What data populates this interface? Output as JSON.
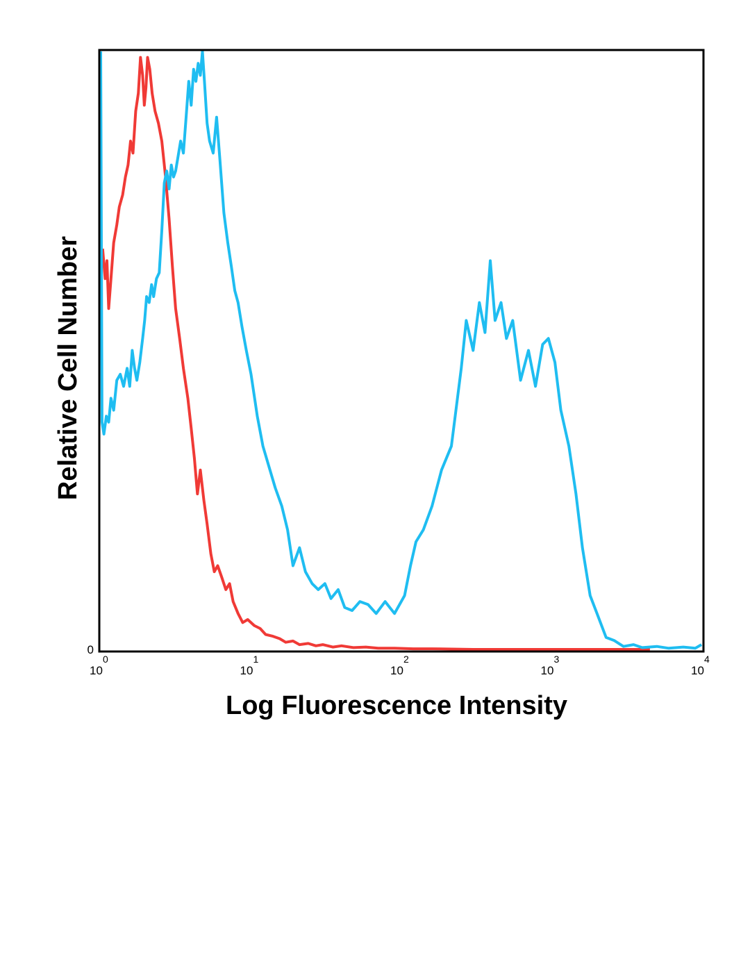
{
  "chart_data": {
    "type": "line",
    "title": "",
    "xlabel": "Log Fluorescence Intensity",
    "ylabel": "Relative Cell Number",
    "xscale": "log",
    "xlim": [
      1,
      10000
    ],
    "ylim": [
      0,
      100
    ],
    "x_ticks": [
      {
        "base": "10",
        "exp": "0",
        "value": 1
      },
      {
        "base": "10",
        "exp": "1",
        "value": 10
      },
      {
        "base": "10",
        "exp": "2",
        "value": 100
      },
      {
        "base": "10",
        "exp": "3",
        "value": 1000
      },
      {
        "base": "10",
        "exp": "4",
        "value": 10000
      }
    ],
    "y_ticks": [
      {
        "label": "0",
        "value": 0
      }
    ],
    "grid": false,
    "legend": "none",
    "series": [
      {
        "name": "red",
        "color": "#f03a36",
        "points": [
          [
            1.03,
            67
          ],
          [
            1.07,
            62
          ],
          [
            1.1,
            65
          ],
          [
            1.13,
            57
          ],
          [
            1.17,
            62
          ],
          [
            1.22,
            68
          ],
          [
            1.28,
            71
          ],
          [
            1.33,
            74
          ],
          [
            1.4,
            76
          ],
          [
            1.46,
            79
          ],
          [
            1.52,
            81
          ],
          [
            1.58,
            85
          ],
          [
            1.64,
            83
          ],
          [
            1.71,
            90
          ],
          [
            1.78,
            93
          ],
          [
            1.84,
            99
          ],
          [
            1.9,
            96
          ],
          [
            1.95,
            91
          ],
          [
            2.0,
            94
          ],
          [
            2.05,
            99
          ],
          [
            2.12,
            97
          ],
          [
            2.2,
            93
          ],
          [
            2.3,
            90
          ],
          [
            2.42,
            88
          ],
          [
            2.55,
            85
          ],
          [
            2.7,
            79
          ],
          [
            2.85,
            72
          ],
          [
            3.0,
            64
          ],
          [
            3.15,
            57
          ],
          [
            3.35,
            52
          ],
          [
            3.55,
            47
          ],
          [
            3.8,
            42
          ],
          [
            4.0,
            37
          ],
          [
            4.2,
            32
          ],
          [
            4.4,
            26
          ],
          [
            4.6,
            30
          ],
          [
            4.85,
            25
          ],
          [
            5.1,
            21
          ],
          [
            5.4,
            16
          ],
          [
            5.7,
            13
          ],
          [
            6.0,
            14
          ],
          [
            6.4,
            12
          ],
          [
            6.8,
            10
          ],
          [
            7.2,
            11
          ],
          [
            7.6,
            8
          ],
          [
            8.2,
            6
          ],
          [
            8.8,
            4.5
          ],
          [
            9.5,
            5
          ],
          [
            10.5,
            4
          ],
          [
            11.5,
            3.5
          ],
          [
            12.5,
            2.5
          ],
          [
            14,
            2.2
          ],
          [
            15.5,
            1.8
          ],
          [
            17,
            1.2
          ],
          [
            19,
            1.4
          ],
          [
            21,
            0.8
          ],
          [
            24,
            1
          ],
          [
            27,
            0.6
          ],
          [
            30,
            0.8
          ],
          [
            35,
            0.4
          ],
          [
            40,
            0.6
          ],
          [
            48,
            0.3
          ],
          [
            58,
            0.4
          ],
          [
            70,
            0.2
          ],
          [
            90,
            0.2
          ],
          [
            120,
            0.1
          ],
          [
            160,
            0.1
          ],
          [
            300,
            0
          ],
          [
            1000,
            0
          ],
          [
            3000,
            0
          ],
          [
            4500,
            0
          ]
        ]
      },
      {
        "name": "blue",
        "color": "#1fbdf1",
        "points": [
          [
            1.0,
            100
          ],
          [
            1.02,
            38
          ],
          [
            1.05,
            36
          ],
          [
            1.09,
            39
          ],
          [
            1.13,
            38
          ],
          [
            1.17,
            42
          ],
          [
            1.22,
            40
          ],
          [
            1.28,
            45
          ],
          [
            1.35,
            46
          ],
          [
            1.42,
            44
          ],
          [
            1.5,
            47
          ],
          [
            1.56,
            44
          ],
          [
            1.62,
            50
          ],
          [
            1.68,
            47
          ],
          [
            1.74,
            45
          ],
          [
            1.82,
            48
          ],
          [
            1.9,
            52
          ],
          [
            1.96,
            55
          ],
          [
            2.02,
            59
          ],
          [
            2.1,
            58
          ],
          [
            2.18,
            61
          ],
          [
            2.25,
            59
          ],
          [
            2.35,
            62
          ],
          [
            2.45,
            63
          ],
          [
            2.55,
            70
          ],
          [
            2.65,
            78
          ],
          [
            2.75,
            80
          ],
          [
            2.85,
            77
          ],
          [
            2.95,
            81
          ],
          [
            3.05,
            79
          ],
          [
            3.15,
            80
          ],
          [
            3.25,
            82
          ],
          [
            3.4,
            85
          ],
          [
            3.55,
            83
          ],
          [
            3.7,
            89
          ],
          [
            3.85,
            95
          ],
          [
            4.0,
            91
          ],
          [
            4.15,
            97
          ],
          [
            4.3,
            95
          ],
          [
            4.45,
            98
          ],
          [
            4.6,
            96
          ],
          [
            4.75,
            100
          ],
          [
            4.9,
            95
          ],
          [
            5.1,
            88
          ],
          [
            5.3,
            85
          ],
          [
            5.6,
            83
          ],
          [
            5.9,
            89
          ],
          [
            6.2,
            82
          ],
          [
            6.6,
            73
          ],
          [
            7.0,
            68
          ],
          [
            7.4,
            64
          ],
          [
            7.8,
            60
          ],
          [
            8.2,
            58
          ],
          [
            8.7,
            54
          ],
          [
            9.3,
            50
          ],
          [
            10.0,
            46
          ],
          [
            11.0,
            39
          ],
          [
            12.0,
            34
          ],
          [
            13.0,
            31
          ],
          [
            14.5,
            27
          ],
          [
            16.0,
            24
          ],
          [
            17.5,
            20
          ],
          [
            19.0,
            14
          ],
          [
            21.0,
            17
          ],
          [
            23.0,
            13
          ],
          [
            25.5,
            11
          ],
          [
            28.0,
            10
          ],
          [
            31.0,
            11
          ],
          [
            34.0,
            8.5
          ],
          [
            38.0,
            10
          ],
          [
            42.0,
            7
          ],
          [
            47.0,
            6.5
          ],
          [
            53.0,
            8
          ],
          [
            60.0,
            7.5
          ],
          [
            68.0,
            6
          ],
          [
            78.0,
            8
          ],
          [
            90.0,
            6
          ],
          [
            105,
            9
          ],
          [
            115,
            14
          ],
          [
            125,
            18
          ],
          [
            140,
            20
          ],
          [
            160,
            24
          ],
          [
            185,
            30
          ],
          [
            215,
            34
          ],
          [
            250,
            47
          ],
          [
            270,
            55
          ],
          [
            300,
            50
          ],
          [
            330,
            58
          ],
          [
            360,
            53
          ],
          [
            390,
            65
          ],
          [
            420,
            55
          ],
          [
            460,
            58
          ],
          [
            500,
            52
          ],
          [
            550,
            55
          ],
          [
            620,
            45
          ],
          [
            700,
            50
          ],
          [
            780,
            44
          ],
          [
            870,
            51
          ],
          [
            950,
            52
          ],
          [
            1050,
            48
          ],
          [
            1150,
            40
          ],
          [
            1300,
            34
          ],
          [
            1450,
            26
          ],
          [
            1600,
            17
          ],
          [
            1800,
            9
          ],
          [
            2000,
            6
          ],
          [
            2300,
            2
          ],
          [
            2600,
            1.5
          ],
          [
            3000,
            0.5
          ],
          [
            3500,
            0.8
          ],
          [
            4000,
            0.3
          ],
          [
            5000,
            0.5
          ],
          [
            6000,
            0.2
          ],
          [
            7500,
            0.4
          ],
          [
            9000,
            0.2
          ],
          [
            9900,
            0.8
          ]
        ]
      }
    ]
  }
}
